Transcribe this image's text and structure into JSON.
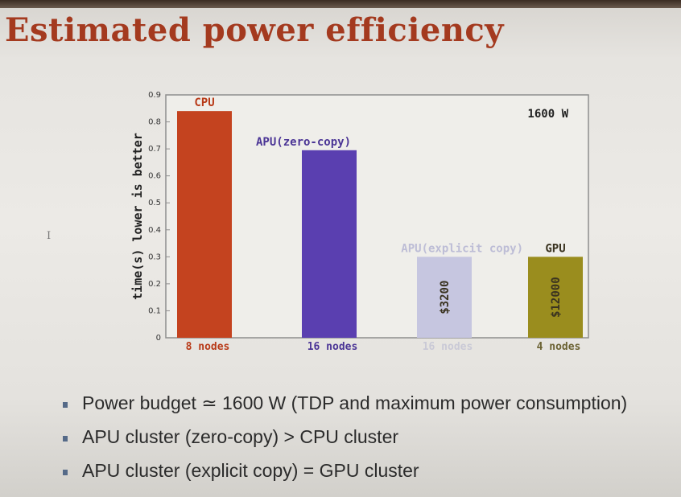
{
  "slide": {
    "title": "Estimated power efficiency",
    "cursor_glyph": "I",
    "bullets": [
      "Power budget ≃ 1600 W (TDP and maximum power consumption)",
      "APU cluster (zero-copy) > CPU cluster",
      "APU cluster (explicit copy) = GPU cluster"
    ],
    "bullet_color": "#556a88"
  },
  "chart_data": {
    "type": "bar",
    "title": "",
    "ylabel": "time(s) lower is better",
    "xlabel": "",
    "ylim": [
      0,
      0.9
    ],
    "yticks": [
      "0",
      "0.1",
      "0.2",
      "0.3",
      "0.4",
      "0.5",
      "0.6",
      "0.7",
      "0.8",
      "0.9"
    ],
    "annotation": "1600 W",
    "categories": [
      "8 nodes",
      "16 nodes",
      "16 nodes",
      "4 nodes"
    ],
    "bars": [
      {
        "label": "CPU",
        "category": "8 nodes",
        "value": 0.84,
        "color": "#c4431f",
        "label_color": "#b83a18",
        "price": ""
      },
      {
        "label": "APU(zero-copy)",
        "category": "16 nodes",
        "value": 0.695,
        "color": "#5a3fb0",
        "label_color": "#4b3596",
        "price": ""
      },
      {
        "label": "APU(explicit copy)",
        "category": "16 nodes",
        "value": 0.3,
        "color": "#c6c6e0",
        "label_color": "#bdbdd6",
        "price": "$3200"
      },
      {
        "label": "GPU",
        "category": "4 nodes",
        "value": 0.3,
        "color": "#9a8d1e",
        "label_color": "#3a3320",
        "price": "$12000"
      }
    ],
    "category_label_colors": [
      "#b83a18",
      "#4b3596",
      "#c9c9d6",
      "#6b6233"
    ]
  }
}
